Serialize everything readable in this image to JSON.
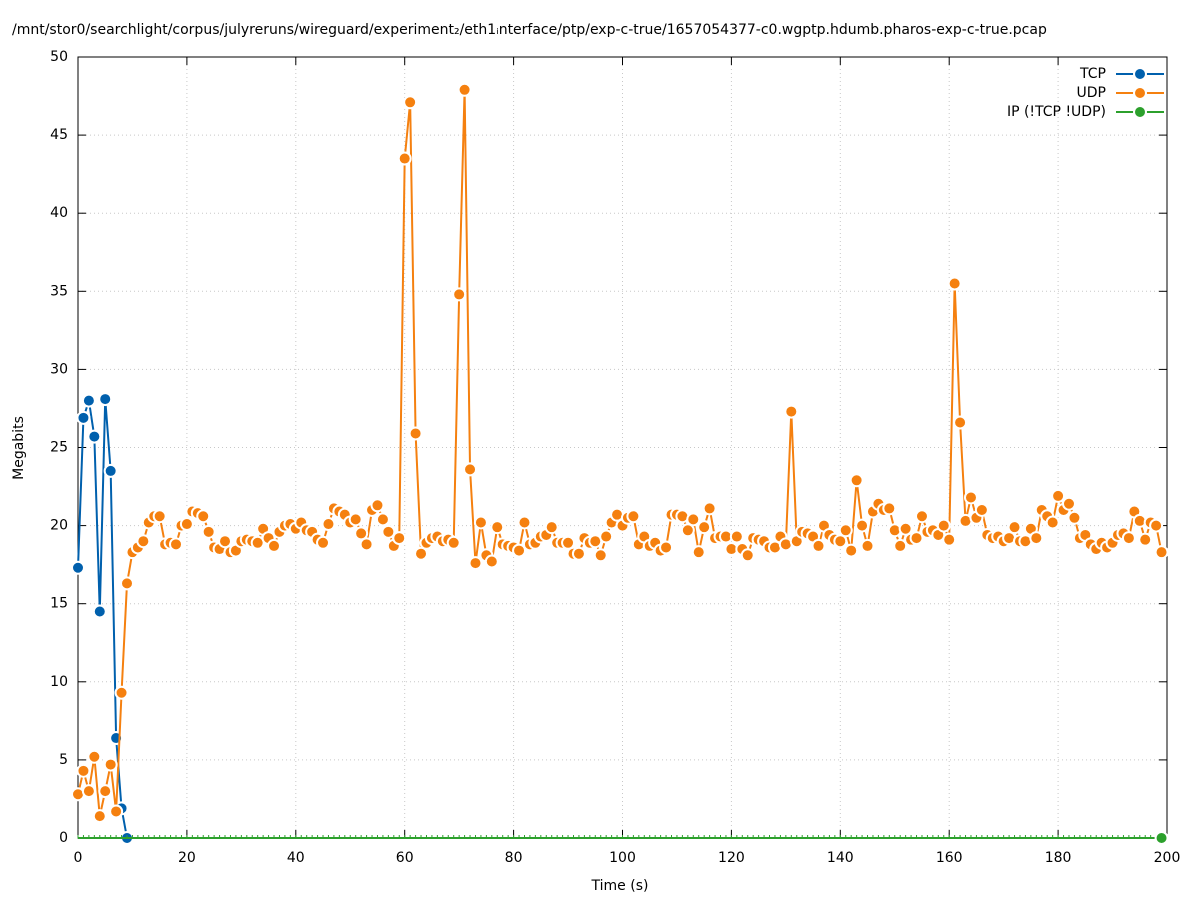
{
  "chart_data": {
    "type": "line",
    "title": "/mnt/stor0/searchlight/corpus/julyreruns/wireguard/experiment₂/eth1ᵢnterface/ptp/exp-c-true/1657054377-c0.wgptp.hdumb.pharos-exp-c-true.pcap",
    "xlabel": "Time (s)",
    "ylabel": "Megabits",
    "xlim": [
      0,
      200
    ],
    "ylim": [
      0,
      50
    ],
    "xticks": [
      0,
      20,
      40,
      60,
      80,
      100,
      120,
      140,
      160,
      180,
      200
    ],
    "yticks": [
      0,
      5,
      10,
      15,
      20,
      25,
      30,
      35,
      40,
      45,
      50
    ],
    "grid": true,
    "legend": "top-right",
    "x": [
      0,
      1,
      2,
      3,
      4,
      5,
      6,
      7,
      8,
      9,
      10,
      11,
      12,
      13,
      14,
      15,
      16,
      17,
      18,
      19,
      20,
      21,
      22,
      23,
      24,
      25,
      26,
      27,
      28,
      29,
      30,
      31,
      32,
      33,
      34,
      35,
      36,
      37,
      38,
      39,
      40,
      41,
      42,
      43,
      44,
      45,
      46,
      47,
      48,
      49,
      50,
      51,
      52,
      53,
      54,
      55,
      56,
      57,
      58,
      59,
      60,
      61,
      62,
      63,
      64,
      65,
      66,
      67,
      68,
      69,
      70,
      71,
      72,
      73,
      74,
      75,
      76,
      77,
      78,
      79,
      80,
      81,
      82,
      83,
      84,
      85,
      86,
      87,
      88,
      89,
      90,
      91,
      92,
      93,
      94,
      95,
      96,
      97,
      98,
      99,
      100,
      101,
      102,
      103,
      104,
      105,
      106,
      107,
      108,
      109,
      110,
      111,
      112,
      113,
      114,
      115,
      116,
      117,
      118,
      119,
      120,
      121,
      122,
      123,
      124,
      125,
      126,
      127,
      128,
      129,
      130,
      131,
      132,
      133,
      134,
      135,
      136,
      137,
      138,
      139,
      140,
      141,
      142,
      143,
      144,
      145,
      146,
      147,
      148,
      149,
      150,
      151,
      152,
      153,
      154,
      155,
      156,
      157,
      158,
      159,
      160,
      161,
      162,
      163,
      164,
      165,
      166,
      167,
      168,
      169,
      170,
      171,
      172,
      173,
      174,
      175,
      176,
      177,
      178,
      179,
      180,
      181,
      182,
      183,
      184,
      185,
      186,
      187,
      188,
      189,
      190,
      191,
      192,
      193,
      194,
      195,
      196,
      197,
      198,
      199
    ],
    "series": [
      {
        "name": "TCP",
        "color": "#0060ad",
        "x": [
          0,
          1,
          2,
          3,
          4,
          5,
          6,
          7,
          8,
          9
        ],
        "values": [
          17.3,
          26.9,
          28.0,
          25.7,
          14.5,
          28.1,
          23.5,
          6.4,
          1.9,
          0
        ]
      },
      {
        "name": "UDP",
        "color": "#f5800f",
        "values": [
          2.8,
          4.3,
          3.0,
          5.2,
          1.4,
          3.0,
          4.7,
          1.7,
          9.3,
          16.3,
          18.3,
          18.6,
          19.0,
          20.2,
          20.6,
          20.6,
          18.8,
          18.9,
          18.8,
          20.0,
          20.1,
          20.9,
          20.8,
          20.6,
          19.6,
          18.6,
          18.5,
          19.0,
          18.3,
          18.4,
          19.0,
          19.1,
          19.0,
          18.9,
          19.8,
          19.2,
          18.7,
          19.6,
          20.0,
          20.1,
          19.8,
          20.2,
          19.7,
          19.6,
          19.1,
          18.9,
          20.1,
          21.1,
          20.9,
          20.7,
          20.2,
          20.4,
          19.5,
          18.8,
          21.0,
          21.3,
          20.4,
          19.6,
          18.7,
          19.2,
          43.5,
          47.1,
          25.9,
          18.2,
          18.9,
          19.2,
          19.3,
          19.0,
          19.1,
          18.9,
          34.8,
          47.9,
          23.6,
          17.6,
          20.2,
          18.1,
          17.7,
          19.9,
          18.8,
          18.7,
          18.6,
          18.4,
          20.2,
          18.8,
          18.9,
          19.3,
          19.4,
          19.9,
          18.9,
          18.9,
          18.9,
          18.2,
          18.2,
          19.2,
          18.9,
          19.0,
          18.1,
          19.3,
          20.2,
          20.7,
          20.0,
          20.5,
          20.6,
          18.8,
          19.3,
          18.7,
          18.9,
          18.4,
          18.6,
          20.7,
          20.7,
          20.6,
          19.7,
          20.4,
          18.3,
          19.9,
          21.1,
          19.2,
          19.3,
          19.3,
          18.5,
          19.3,
          18.5,
          18.1,
          19.2,
          19.1,
          19.0,
          18.6,
          18.6,
          19.3,
          18.8,
          27.3,
          19.0,
          19.6,
          19.5,
          19.3,
          18.7,
          20.0,
          19.4,
          19.1,
          19.0,
          19.7,
          18.4,
          22.9,
          20.0,
          18.7,
          20.9,
          21.4,
          21.0,
          21.1,
          19.7,
          18.7,
          19.8,
          19.1,
          19.2,
          20.6,
          19.6,
          19.7,
          19.4,
          20.0,
          19.1,
          35.5,
          26.6,
          20.3,
          21.8,
          20.5,
          21.0,
          19.4,
          19.2,
          19.3,
          19.0,
          19.2,
          19.9,
          19.0,
          19.0,
          19.8,
          19.2,
          21.0,
          20.6,
          20.2,
          21.9,
          21.0,
          21.4,
          20.5,
          19.2,
          19.4,
          18.8,
          18.5,
          18.9,
          18.6,
          18.9,
          19.4,
          19.5,
          19.2,
          20.9,
          20.3,
          19.1,
          20.2,
          20.0,
          18.3
        ]
      },
      {
        "name": "IP (!TCP  !UDP)",
        "color": "#2ca02c",
        "values": [
          0,
          0,
          0,
          0,
          0,
          0,
          0,
          0,
          0,
          0,
          0,
          0,
          0,
          0,
          0,
          0,
          0,
          0,
          0,
          0,
          0,
          0,
          0,
          0,
          0,
          0,
          0,
          0,
          0,
          0,
          0,
          0,
          0,
          0,
          0,
          0,
          0,
          0,
          0,
          0,
          0,
          0,
          0,
          0,
          0,
          0,
          0,
          0,
          0,
          0,
          0,
          0,
          0,
          0,
          0,
          0,
          0,
          0,
          0,
          0,
          0,
          0,
          0,
          0,
          0,
          0,
          0,
          0,
          0,
          0,
          0,
          0,
          0,
          0,
          0,
          0,
          0,
          0,
          0,
          0,
          0,
          0,
          0,
          0,
          0,
          0,
          0,
          0,
          0,
          0,
          0,
          0,
          0,
          0,
          0,
          0,
          0,
          0,
          0,
          0,
          0,
          0,
          0,
          0,
          0,
          0,
          0,
          0,
          0,
          0,
          0,
          0,
          0,
          0,
          0,
          0,
          0,
          0,
          0,
          0,
          0,
          0,
          0,
          0,
          0,
          0,
          0,
          0,
          0,
          0,
          0,
          0,
          0,
          0,
          0,
          0,
          0,
          0,
          0,
          0,
          0,
          0,
          0,
          0,
          0,
          0,
          0,
          0,
          0,
          0,
          0,
          0,
          0,
          0,
          0,
          0,
          0,
          0,
          0,
          0,
          0,
          0,
          0,
          0,
          0,
          0,
          0,
          0,
          0,
          0,
          0,
          0,
          0,
          0,
          0,
          0,
          0,
          0,
          0,
          0,
          0,
          0,
          0,
          0,
          0,
          0,
          0,
          0,
          0,
          0,
          0,
          0,
          0,
          0,
          0,
          0,
          0,
          0,
          0,
          0
        ]
      }
    ]
  }
}
